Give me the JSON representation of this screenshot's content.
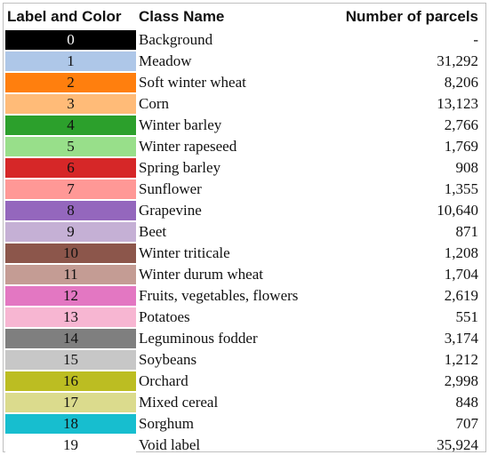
{
  "headers": {
    "label_color": "Label and Color",
    "class_name": "Class Name",
    "parcels": "Number of parcels"
  },
  "rows": [
    {
      "label": "0",
      "color": "#000000",
      "text_color": "#ffffff",
      "name": "Background",
      "parcels": "-"
    },
    {
      "label": "1",
      "color": "#aec7e8",
      "text_color": "#111111",
      "name": "Meadow",
      "parcels": "31,292"
    },
    {
      "label": "2",
      "color": "#ff7f0e",
      "text_color": "#111111",
      "name": "Soft winter wheat",
      "parcels": "8,206"
    },
    {
      "label": "3",
      "color": "#ffbb78",
      "text_color": "#111111",
      "name": "Corn",
      "parcels": "13,123"
    },
    {
      "label": "4",
      "color": "#2ca02c",
      "text_color": "#111111",
      "name": "Winter barley",
      "parcels": "2,766"
    },
    {
      "label": "5",
      "color": "#98df8a",
      "text_color": "#111111",
      "name": "Winter rapeseed",
      "parcels": "1,769"
    },
    {
      "label": "6",
      "color": "#d62728",
      "text_color": "#111111",
      "name": "Spring barley",
      "parcels": "908"
    },
    {
      "label": "7",
      "color": "#ff9896",
      "text_color": "#111111",
      "name": "Sunflower",
      "parcels": "1,355"
    },
    {
      "label": "8",
      "color": "#9467bd",
      "text_color": "#111111",
      "name": "Grapevine",
      "parcels": "10,640"
    },
    {
      "label": "9",
      "color": "#c5b0d5",
      "text_color": "#111111",
      "name": "Beet",
      "parcels": "871"
    },
    {
      "label": "10",
      "color": "#8c564b",
      "text_color": "#111111",
      "name": "Winter triticale",
      "parcels": "1,208"
    },
    {
      "label": "11",
      "color": "#c49c94",
      "text_color": "#111111",
      "name": "Winter durum wheat",
      "parcels": "1,704"
    },
    {
      "label": "12",
      "color": "#e377c2",
      "text_color": "#111111",
      "name": "Fruits, vegetables, flowers",
      "parcels": "2,619"
    },
    {
      "label": "13",
      "color": "#f7b6d2",
      "text_color": "#111111",
      "name": "Potatoes",
      "parcels": "551"
    },
    {
      "label": "14",
      "color": "#7f7f7f",
      "text_color": "#111111",
      "name": "Leguminous fodder",
      "parcels": "3,174"
    },
    {
      "label": "15",
      "color": "#c7c7c7",
      "text_color": "#111111",
      "name": "Soybeans",
      "parcels": "1,212"
    },
    {
      "label": "16",
      "color": "#bcbd22",
      "text_color": "#111111",
      "name": "Orchard",
      "parcels": "2,998"
    },
    {
      "label": "17",
      "color": "#dbdb8d",
      "text_color": "#111111",
      "name": "Mixed cereal",
      "parcels": "848"
    },
    {
      "label": "18",
      "color": "#17becf",
      "text_color": "#111111",
      "name": "Sorghum",
      "parcels": "707"
    },
    {
      "label": "19",
      "color": "#ffffff",
      "text_color": "#111111",
      "name": "Void label",
      "parcels": "35,924"
    }
  ]
}
